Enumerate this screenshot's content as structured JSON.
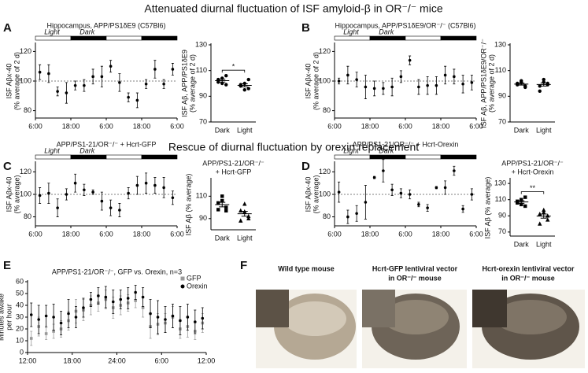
{
  "headings": [
    "Attenuated diurnal fluctuation of ISF amyloid-β in OR⁻/⁻ mice",
    "Rescue of diurnal fluctuation by orexin replacement"
  ],
  "panels": [
    "A",
    "B",
    "C",
    "D",
    "E",
    "F"
  ],
  "images": [
    [
      "Wild type mouse"
    ],
    [
      "Hcrt-GFP lentiviral vector",
      "in OR⁻/⁻ mouse"
    ],
    [
      "Hcrt-orexin lentiviral vector",
      "in OR⁻/⁻ mouse"
    ]
  ],
  "chart_data": [
    {
      "type": "scatter",
      "title": [
        "Hippocampus, APP/PS1δE9 (C57Bl6)"
      ],
      "ylabel": [
        "ISF Aβx-40",
        "(% average of 2 d)"
      ],
      "annotations": [
        "Light",
        "Dark"
      ],
      "hline": 100,
      "x": [
        1.5,
        4.5,
        7.5,
        10.5,
        13.5,
        16.5,
        19.5,
        22.5,
        25.5,
        28.5,
        31.5,
        34.5,
        37.5,
        40.5,
        43.5,
        46.5
      ],
      "values": [
        106,
        105,
        93,
        92,
        97,
        97,
        103,
        103,
        110,
        99,
        89,
        87,
        98,
        108,
        98,
        108
      ],
      "errors": [
        5,
        6,
        3,
        7,
        3,
        4,
        5,
        7,
        4,
        6,
        3,
        5,
        3,
        6,
        3,
        4
      ],
      "xlim": [
        0,
        48
      ],
      "xticks": [
        {
          "value": 0,
          "label": "6:00"
        },
        {
          "value": 12,
          "label": "18:00"
        },
        {
          "value": 24,
          "label": "6:00"
        },
        {
          "value": 36,
          "label": "18:00"
        },
        {
          "value": 48,
          "label": "6:00"
        }
      ],
      "ylim": [
        75,
        125
      ],
      "yticks": [
        80,
        100,
        120
      ]
    },
    {
      "type": "dotplot",
      "title": [],
      "ylabel": [
        "ISF Aβ, APP/PS1δE9",
        "(% average of 2 d)"
      ],
      "categories": [
        "Dark",
        "Light"
      ],
      "points": [
        [
          101,
          104,
          99,
          103,
          100,
          106
        ],
        [
          98,
          100,
          96,
          99,
          95,
          103
        ]
      ],
      "markers": [
        "circle",
        "circle"
      ],
      "significance": "*",
      "ylim": [
        70,
        130
      ],
      "yticks": [
        70,
        90,
        110,
        130
      ]
    },
    {
      "type": "scatter",
      "title": [
        "Hippocampus, APP/PS1δE9/OR⁻/⁻ (C57Bl6)"
      ],
      "ylabel": [
        "ISF Aβx-40",
        "(% average of 2 d)"
      ],
      "annotations": [
        "Light",
        "Dark"
      ],
      "hline": 100,
      "x": [
        1.5,
        4.5,
        7.5,
        10.5,
        13.5,
        16.5,
        19.5,
        22.5,
        25.5,
        28.5,
        31.5,
        34.5,
        37.5,
        40.5,
        43.5,
        46.5
      ],
      "values": [
        100,
        104,
        101,
        96,
        95,
        95,
        96,
        103,
        114,
        96,
        97,
        97,
        104,
        103,
        98,
        99
      ],
      "errors": [
        2,
        6,
        5,
        8,
        5,
        4,
        6,
        4,
        3,
        5,
        6,
        6,
        6,
        5,
        6,
        5
      ],
      "xlim": [
        0,
        48
      ],
      "xticks": [
        {
          "value": 0,
          "label": "6:00"
        },
        {
          "value": 12,
          "label": "18:00"
        },
        {
          "value": 24,
          "label": "6:00"
        },
        {
          "value": 36,
          "label": "18:00"
        },
        {
          "value": 48,
          "label": "6:00"
        }
      ],
      "ylim": [
        75,
        125
      ],
      "yticks": [
        80,
        100,
        120
      ]
    },
    {
      "type": "dotplot",
      "title": [],
      "ylabel": [
        "ISF Aβ, APP/PS1δE9/OR⁻/⁻",
        "(% average of 2 d)"
      ],
      "categories": [
        "Dark",
        "Light"
      ],
      "points": [
        [
          99,
          101,
          98,
          100,
          102,
          97
        ],
        [
          98,
          103,
          99,
          94,
          101,
          100
        ]
      ],
      "markers": [
        "circle",
        "circle"
      ],
      "ylim": [
        70,
        130
      ],
      "yticks": [
        70,
        90,
        110,
        130
      ]
    },
    {
      "type": "scatter",
      "title": [
        "APP/PS1-21/OR⁻/⁻ + Hcrt-GFP"
      ],
      "ylabel": [
        "ISF Aβx-40",
        "(% average)"
      ],
      "annotations": [
        "Light",
        "Dark"
      ],
      "hline": 100,
      "x": [
        1.5,
        4.5,
        7.5,
        10.5,
        13.5,
        16.5,
        19.5,
        22.5,
        25.5,
        28.5,
        31.5,
        34.5,
        37.5,
        40.5,
        43.5,
        46.5
      ],
      "values": [
        99,
        101,
        88,
        100,
        110,
        104,
        102,
        94,
        88,
        86,
        101,
        108,
        110,
        108,
        106,
        97
      ],
      "errors": [
        7,
        9,
        8,
        5,
        8,
        5,
        2,
        8,
        7,
        6,
        5,
        8,
        9,
        7,
        9,
        6
      ],
      "xlim": [
        0,
        48
      ],
      "xticks": [
        {
          "value": 0,
          "label": "6:00"
        },
        {
          "value": 12,
          "label": "18:00"
        },
        {
          "value": 24,
          "label": "6:00"
        },
        {
          "value": 36,
          "label": "18:00"
        },
        {
          "value": 48,
          "label": "6:00"
        }
      ],
      "ylim": [
        72,
        128
      ],
      "yticks": [
        80,
        100,
        120
      ]
    },
    {
      "type": "dotplot",
      "title": [
        "APP/PS1-21/OR⁻/⁻",
        "+ Hcrt-GFP"
      ],
      "ylabel": [
        "ISF Aβ (% average)"
      ],
      "categories": [
        "Dark",
        "Light"
      ],
      "points": [
        [
          104,
          110,
          100,
          98,
          106,
          97
        ],
        [
          97,
          103,
          90,
          88,
          96,
          92
        ]
      ],
      "markers": [
        "square",
        "triangle"
      ],
      "ylim": [
        80,
        125
      ],
      "yticks": [
        90,
        110
      ]
    },
    {
      "type": "scatter",
      "title": [
        "APP/PS1-21/OR⁻/⁻ + Hcrt-Orexin"
      ],
      "ylabel": [
        "ISF Aβx-40",
        "(% average)"
      ],
      "annotations": [
        "Light",
        "Dark"
      ],
      "hline": 100,
      "x": [
        1.5,
        4.5,
        7.5,
        10.5,
        13.5,
        16.5,
        19.5,
        22.5,
        25.5,
        28.5,
        31.5,
        34.5,
        37.5,
        40.5,
        43.5,
        46.5
      ],
      "values": [
        102,
        80,
        83,
        93,
        115,
        121,
        104,
        101,
        100,
        91,
        88,
        106,
        106,
        121,
        87,
        100
      ],
      "errors": [
        9,
        6,
        7,
        15,
        1,
        10,
        5,
        4,
        4,
        2,
        3,
        1,
        6,
        4,
        3,
        5
      ],
      "xlim": [
        0,
        48
      ],
      "xticks": [
        {
          "value": 0,
          "label": "6:00"
        },
        {
          "value": 12,
          "label": "18:00"
        },
        {
          "value": 24,
          "label": "6:00"
        },
        {
          "value": 36,
          "label": "18:00"
        },
        {
          "value": 48,
          "label": "6:00"
        }
      ],
      "ylim": [
        72,
        128
      ],
      "yticks": [
        80,
        100,
        120
      ]
    },
    {
      "type": "dotplot",
      "title": [
        "APP/PS1-21/OR⁻/⁻",
        "+ Hcrt-Orexin"
      ],
      "ylabel": [
        "ISF Aβ (% average)"
      ],
      "categories": [
        "Dark",
        "Light"
      ],
      "points": [
        [
          106,
          110,
          102,
          108,
          104,
          113
        ],
        [
          92,
          97,
          85,
          80,
          94,
          90
        ]
      ],
      "markers": [
        "square",
        "triangle"
      ],
      "significance": "**",
      "ylim": [
        65,
        135
      ],
      "yticks": [
        70,
        90,
        110,
        130
      ]
    },
    {
      "type": "scatter",
      "title": [
        "APP/PS1-21/OR⁻/⁻, GFP vs. Orexin, n=3"
      ],
      "ylabel": [
        "Minutes awake",
        "per hour"
      ],
      "x": [
        0.5,
        1.5,
        2.5,
        3.5,
        4.5,
        5.5,
        6.5,
        7.5,
        8.5,
        9.5,
        10.5,
        11.5,
        12.5,
        13.5,
        14.5,
        15.5,
        16.5,
        17.5,
        18.5,
        19.5,
        20.5,
        21.5,
        22.5,
        23.5
      ],
      "series": [
        {
          "name": "GFP",
          "color": "#999999",
          "marker": "square",
          "values": [
            12,
            22,
            16,
            18,
            20,
            27,
            35,
            36,
            40,
            42,
            45,
            38,
            40,
            42,
            44,
            38,
            22,
            24,
            25,
            30,
            20,
            22,
            18,
            25
          ],
          "errors": [
            6,
            8,
            5,
            6,
            7,
            8,
            10,
            9,
            8,
            7,
            8,
            9,
            8,
            7,
            6,
            8,
            10,
            9,
            8,
            9,
            8,
            9,
            7,
            8
          ]
        },
        {
          "name": "Orexin",
          "color": "#000000",
          "marker": "circle",
          "values": [
            32,
            28,
            31,
            30,
            25,
            33,
            30,
            38,
            45,
            48,
            47,
            43,
            45,
            46,
            51,
            47,
            33,
            30,
            28,
            31,
            27,
            30,
            26,
            29
          ],
          "errors": [
            10,
            12,
            9,
            11,
            10,
            12,
            9,
            8,
            6,
            7,
            9,
            10,
            8,
            9,
            6,
            8,
            12,
            14,
            11,
            10,
            12,
            11,
            10,
            9
          ]
        }
      ],
      "xlim": [
        0,
        24
      ],
      "xticks": [
        {
          "value": 0,
          "label": "12:00"
        },
        {
          "value": 6,
          "label": "18:00"
        },
        {
          "value": 12,
          "label": "24:00"
        },
        {
          "value": 18,
          "label": "6:00"
        },
        {
          "value": 24,
          "label": "12:00"
        }
      ],
      "ylim": [
        0,
        60
      ],
      "yticks": [
        0,
        10,
        20,
        30,
        40,
        50,
        60
      ],
      "legend": "top-right"
    }
  ]
}
